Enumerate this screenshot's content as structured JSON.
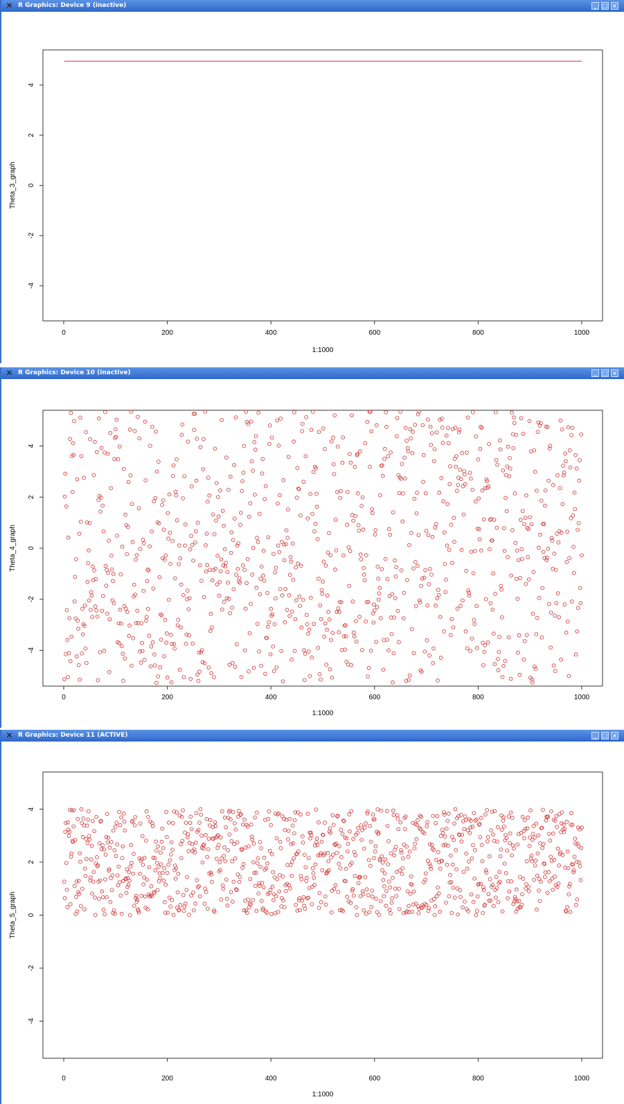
{
  "windows": [
    {
      "title": "R Graphics: Device 9 (inactive)",
      "chart_data": {
        "type": "line",
        "xlabel": "1:1000",
        "ylabel": "Theta_3_graph",
        "xlim": [
          0,
          1000
        ],
        "ylim": [
          -5.4,
          5.4
        ],
        "x_ticks": [
          "0",
          "200",
          "400",
          "600",
          "800",
          "1000"
        ],
        "y_ticks": [
          "-4",
          "-2",
          "0",
          "2",
          "4"
        ],
        "series": [
          {
            "x": [
              1,
              1000
            ],
            "values": [
              4.95,
              4.95
            ],
            "color": "#e84040"
          }
        ]
      }
    },
    {
      "title": "R Graphics: Device 10 (inactive)",
      "chart_data": {
        "type": "scatter",
        "xlabel": "1:1000",
        "ylabel": "Theta_4_graph",
        "xlim": [
          0,
          1000
        ],
        "ylim": [
          -5.4,
          5.4
        ],
        "x_ticks": [
          "0",
          "200",
          "400",
          "600",
          "800",
          "1000"
        ],
        "y_ticks": [
          "-4",
          "-2",
          "0",
          "2",
          "4"
        ],
        "points_summary": {
          "n": 1000,
          "y_min": -5.3,
          "y_max": 5.4,
          "marker": "open-circle",
          "color": "#d04040"
        }
      }
    },
    {
      "title": "R Graphics: Device 11 (ACTIVE)",
      "chart_data": {
        "type": "scatter",
        "xlabel": "1:1000",
        "ylabel": "Theta_5_graph",
        "xlim": [
          0,
          1000
        ],
        "ylim": [
          -5.4,
          5.4
        ],
        "x_ticks": [
          "0",
          "200",
          "400",
          "600",
          "800",
          "1000"
        ],
        "y_ticks": [
          "-4",
          "-2",
          "0",
          "2",
          "4"
        ],
        "points_summary": {
          "n": 1000,
          "y_min": 0.0,
          "y_max": 4.0,
          "marker": "open-circle",
          "color": "#d04040"
        }
      }
    }
  ]
}
